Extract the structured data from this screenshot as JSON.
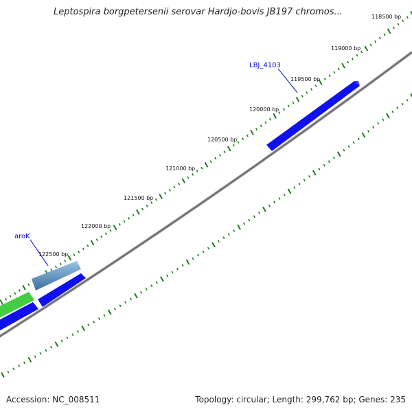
{
  "header": {
    "title": "Leptospira borgpetersenii serovar Hardjo-bovis JB197 chromos..."
  },
  "footer": {
    "accession": "Accession: NC_008511",
    "summary": "Topology: circular; Length: 299,762 bp; Genes: 235"
  },
  "map": {
    "ruler_labels": [
      "118500 bp",
      "119000 bp",
      "119500 bp",
      "120000 bp",
      "120500 bp",
      "121000 bp",
      "121500 bp",
      "122000 bp",
      "122500 bp"
    ],
    "genes": [
      {
        "label": "LBJ_4103"
      },
      {
        "label": "aroK"
      }
    ],
    "colors": {
      "backbone": "#888888",
      "tick": "#1a7a1a",
      "gene_forward": "#1010ee",
      "gene_highlight": "#4f86b8",
      "gene_green": "#44cc44",
      "label_line": "#0000cc"
    }
  }
}
